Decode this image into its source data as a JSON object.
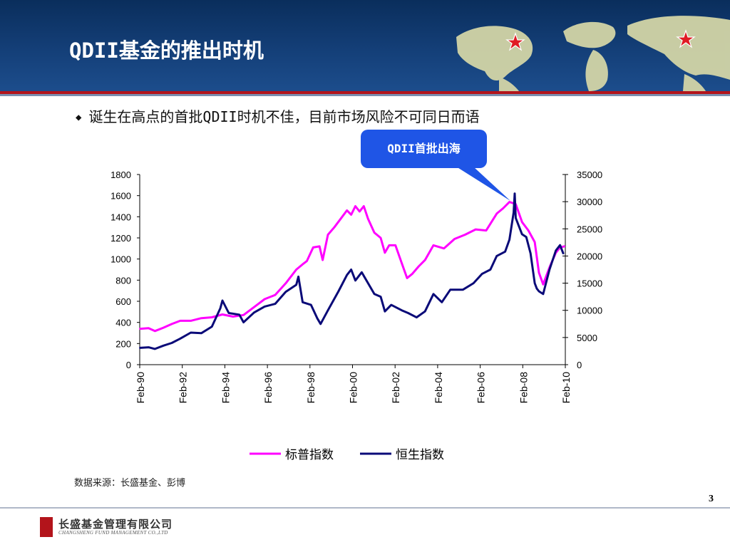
{
  "slide": {
    "title": "QDII基金的推出时机",
    "bullet": "诞生在高点的首批QDII时机不佳，目前市场风险不可同日而语",
    "callout": "QDII首批出海",
    "source": "数据来源：长盛基金、彭博",
    "page_number": "3",
    "company_name_cn": "长盛基金管理有限公司",
    "company_name_en": "CHANGSHENG FUND MANAGEMENT CO.,LTD",
    "accent_color": "#b3141b",
    "header_color": "#0a2e5c"
  },
  "chart_data": {
    "type": "line",
    "title": "",
    "x_tick_labels": [
      "Feb-90",
      "Feb-92",
      "Feb-94",
      "Feb-96",
      "Feb-98",
      "Feb-00",
      "Feb-02",
      "Feb-04",
      "Feb-06",
      "Feb-08",
      "Feb-10"
    ],
    "x_range": [
      1990.08,
      2010.25
    ],
    "left_axis": {
      "range": [
        0,
        1800
      ],
      "ticks": [
        "0",
        "200",
        "400",
        "600",
        "800",
        "1000",
        "1200",
        "1400",
        "1600",
        "1800"
      ]
    },
    "right_axis": {
      "range": [
        0,
        35000
      ],
      "ticks": [
        "0",
        "5000",
        "10000",
        "15000",
        "20000",
        "25000",
        "30000",
        "35000"
      ]
    },
    "legend_position": "bottom",
    "series": [
      {
        "name": "标普指数",
        "axis": "left",
        "color": "#ff00ff",
        "points": [
          [
            1990.1,
            340
          ],
          [
            1990.5,
            345
          ],
          [
            1990.8,
            318
          ],
          [
            1991.2,
            350
          ],
          [
            1991.6,
            385
          ],
          [
            1992.0,
            415
          ],
          [
            1992.5,
            415
          ],
          [
            1993.0,
            440
          ],
          [
            1993.5,
            448
          ],
          [
            1994.0,
            475
          ],
          [
            1994.5,
            455
          ],
          [
            1995.0,
            470
          ],
          [
            1995.5,
            545
          ],
          [
            1996.0,
            620
          ],
          [
            1996.5,
            660
          ],
          [
            1997.0,
            770
          ],
          [
            1997.5,
            900
          ],
          [
            1997.8,
            950
          ],
          [
            1998.0,
            980
          ],
          [
            1998.3,
            1110
          ],
          [
            1998.6,
            1120
          ],
          [
            1998.75,
            990
          ],
          [
            1999.0,
            1230
          ],
          [
            1999.3,
            1300
          ],
          [
            1999.6,
            1380
          ],
          [
            1999.9,
            1460
          ],
          [
            2000.1,
            1420
          ],
          [
            2000.3,
            1500
          ],
          [
            2000.5,
            1450
          ],
          [
            2000.7,
            1500
          ],
          [
            2000.9,
            1380
          ],
          [
            2001.2,
            1250
          ],
          [
            2001.5,
            1200
          ],
          [
            2001.7,
            1060
          ],
          [
            2001.9,
            1130
          ],
          [
            2002.2,
            1130
          ],
          [
            2002.5,
            960
          ],
          [
            2002.75,
            820
          ],
          [
            2003.0,
            860
          ],
          [
            2003.3,
            930
          ],
          [
            2003.6,
            990
          ],
          [
            2004.0,
            1130
          ],
          [
            2004.5,
            1100
          ],
          [
            2005.0,
            1190
          ],
          [
            2005.5,
            1230
          ],
          [
            2006.0,
            1280
          ],
          [
            2006.5,
            1270
          ],
          [
            2007.0,
            1430
          ],
          [
            2007.3,
            1480
          ],
          [
            2007.6,
            1540
          ],
          [
            2007.9,
            1520
          ],
          [
            2008.2,
            1350
          ],
          [
            2008.5,
            1270
          ],
          [
            2008.8,
            1160
          ],
          [
            2009.0,
            870
          ],
          [
            2009.2,
            760
          ],
          [
            2009.5,
            920
          ],
          [
            2009.8,
            1060
          ],
          [
            2010.0,
            1110
          ],
          [
            2010.2,
            1120
          ]
        ]
      },
      {
        "name": "恒生指数",
        "axis": "right",
        "color": "#0a0a78",
        "points": [
          [
            1990.1,
            3100
          ],
          [
            1990.5,
            3200
          ],
          [
            1990.8,
            2900
          ],
          [
            1991.2,
            3500
          ],
          [
            1991.6,
            4000
          ],
          [
            1992.0,
            4800
          ],
          [
            1992.5,
            5900
          ],
          [
            1993.0,
            5800
          ],
          [
            1993.5,
            7000
          ],
          [
            1993.9,
            10400
          ],
          [
            1994.0,
            11800
          ],
          [
            1994.3,
            9500
          ],
          [
            1994.8,
            9200
          ],
          [
            1995.0,
            7800
          ],
          [
            1995.5,
            9600
          ],
          [
            1996.0,
            10700
          ],
          [
            1996.5,
            11200
          ],
          [
            1997.0,
            13400
          ],
          [
            1997.5,
            14700
          ],
          [
            1997.6,
            16200
          ],
          [
            1997.8,
            11500
          ],
          [
            1998.2,
            11000
          ],
          [
            1998.5,
            8500
          ],
          [
            1998.65,
            7500
          ],
          [
            1999.0,
            10000
          ],
          [
            1999.5,
            13500
          ],
          [
            1999.9,
            16500
          ],
          [
            2000.1,
            17500
          ],
          [
            2000.3,
            15500
          ],
          [
            2000.6,
            17000
          ],
          [
            2000.9,
            15000
          ],
          [
            2001.2,
            13000
          ],
          [
            2001.5,
            12500
          ],
          [
            2001.7,
            9800
          ],
          [
            2002.0,
            11000
          ],
          [
            2002.5,
            10000
          ],
          [
            2002.8,
            9500
          ],
          [
            2003.2,
            8700
          ],
          [
            2003.6,
            9800
          ],
          [
            2004.0,
            13000
          ],
          [
            2004.4,
            11500
          ],
          [
            2004.8,
            13800
          ],
          [
            2005.4,
            13800
          ],
          [
            2005.9,
            15000
          ],
          [
            2006.3,
            16700
          ],
          [
            2006.7,
            17500
          ],
          [
            2007.0,
            20000
          ],
          [
            2007.4,
            20800
          ],
          [
            2007.6,
            23000
          ],
          [
            2007.8,
            28000
          ],
          [
            2007.85,
            31500
          ],
          [
            2007.9,
            27000
          ],
          [
            2008.2,
            24000
          ],
          [
            2008.4,
            23500
          ],
          [
            2008.6,
            20500
          ],
          [
            2008.8,
            15000
          ],
          [
            2008.9,
            14000
          ],
          [
            2009.0,
            13500
          ],
          [
            2009.2,
            13000
          ],
          [
            2009.5,
            17500
          ],
          [
            2009.8,
            21000
          ],
          [
            2010.0,
            22000
          ],
          [
            2010.15,
            20500
          ]
        ]
      }
    ]
  }
}
